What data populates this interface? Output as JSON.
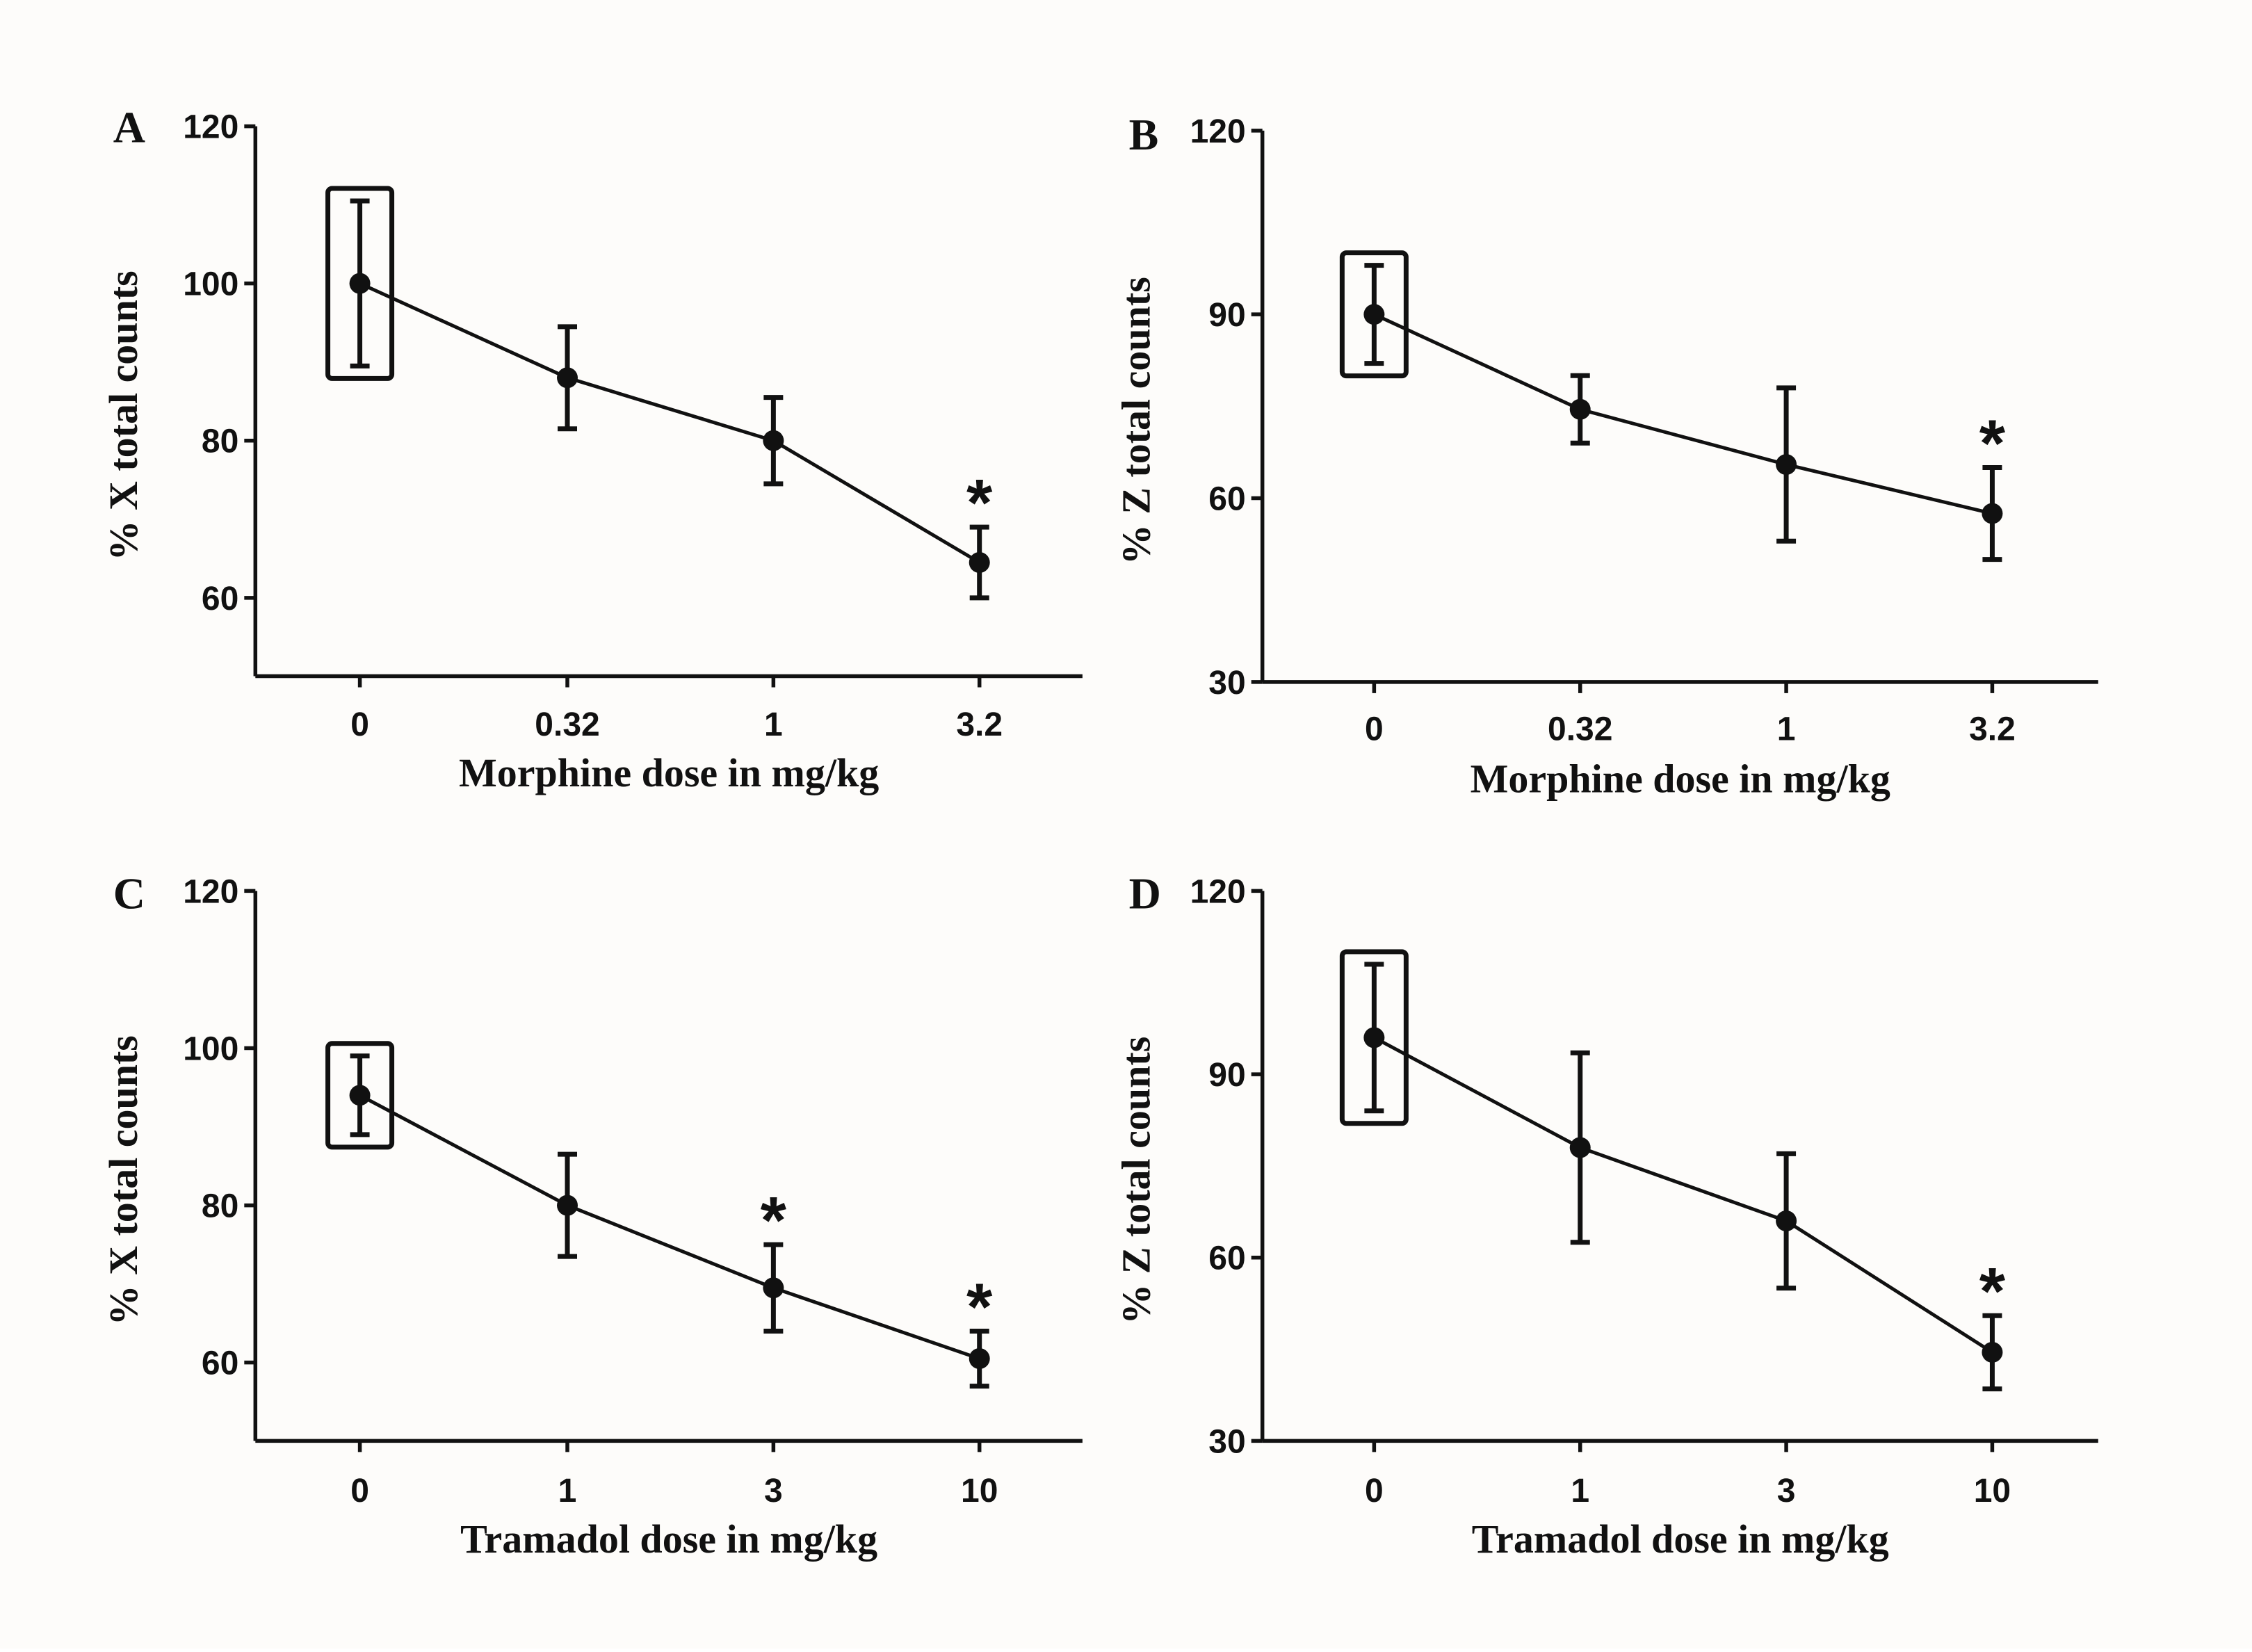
{
  "chart_data": [
    {
      "type": "line",
      "panel": "A",
      "xlabel": "Morphine dose in mg/kg",
      "ylabel": "% X total counts",
      "categories": [
        "0",
        "0.32",
        "1",
        "3.2"
      ],
      "values": [
        100,
        88,
        80,
        64.5
      ],
      "error": [
        10.5,
        6.5,
        5.5,
        4.5
      ],
      "significant": [
        false,
        false,
        false,
        true
      ],
      "significance_marker": "*",
      "boxed": [
        true,
        false,
        false,
        false
      ],
      "yticks": [
        60,
        80,
        100,
        120
      ],
      "ylim": [
        50,
        120
      ]
    },
    {
      "type": "line",
      "panel": "B",
      "xlabel": "Morphine dose in mg/kg",
      "ylabel": "% Z total counts",
      "categories": [
        "0",
        "0.32",
        "1",
        "3.2"
      ],
      "values": [
        90,
        74.5,
        65.5,
        57.5
      ],
      "error": [
        8,
        5.5,
        12.5,
        7.5
      ],
      "significant": [
        false,
        false,
        false,
        true
      ],
      "significance_marker": "*",
      "boxed": [
        true,
        false,
        false,
        false
      ],
      "yticks": [
        30,
        60,
        90,
        120
      ],
      "ylim": [
        30,
        120
      ]
    },
    {
      "type": "line",
      "panel": "C",
      "xlabel": "Tramadol dose in mg/kg",
      "ylabel": "% X total counts",
      "categories": [
        "0",
        "1",
        "3",
        "10"
      ],
      "values": [
        94,
        80,
        69.5,
        60.5
      ],
      "error": [
        5,
        6.5,
        5.5,
        3.5
      ],
      "significant": [
        false,
        false,
        true,
        true
      ],
      "significance_marker": "*",
      "boxed": [
        true,
        false,
        false,
        false
      ],
      "yticks": [
        60,
        80,
        100,
        120
      ],
      "ylim": [
        50,
        120
      ]
    },
    {
      "type": "line",
      "panel": "D",
      "xlabel": "Tramadol dose in mg/kg",
      "ylabel": "% Z total counts",
      "categories": [
        "0",
        "1",
        "3",
        "10"
      ],
      "values": [
        96,
        78,
        66,
        44.5
      ],
      "error": [
        12,
        15.5,
        11,
        6
      ],
      "significant": [
        false,
        false,
        false,
        true
      ],
      "significance_marker": "*",
      "boxed": [
        true,
        false,
        false,
        false
      ],
      "yticks": [
        30,
        60,
        90,
        120
      ],
      "ylim": [
        30,
        120
      ]
    }
  ]
}
